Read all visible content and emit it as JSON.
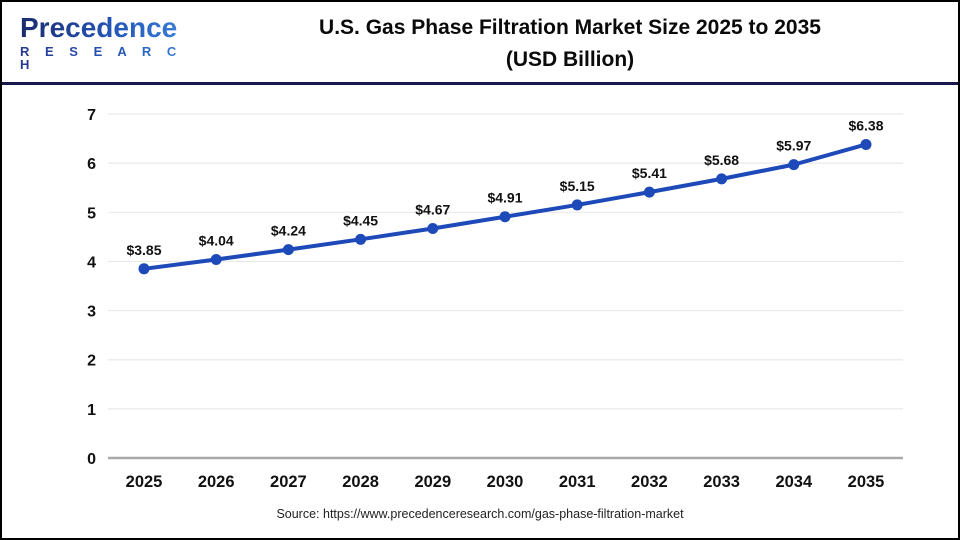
{
  "header": {
    "logo_name": "Precedence",
    "logo_sub": "R E S E A R C H",
    "title_line1": "U.S. Gas Phase Filtration Market Size 2025 to 2035",
    "title_line2": "(USD Billion)"
  },
  "chart_data": {
    "type": "line",
    "title": "U.S. Gas Phase Filtration Market Size 2025 to 2035 (USD Billion)",
    "x": [
      2025,
      2026,
      2027,
      2028,
      2029,
      2030,
      2031,
      2032,
      2033,
      2034,
      2035
    ],
    "values": [
      3.85,
      4.04,
      4.24,
      4.45,
      4.67,
      4.91,
      5.15,
      5.41,
      5.68,
      5.97,
      6.38
    ],
    "point_labels": [
      "$3.85",
      "$4.04",
      "$4.24",
      "$4.45",
      "$4.67",
      "$4.91",
      "$5.15",
      "$5.41",
      "$5.68",
      "$5.97",
      "$6.38"
    ],
    "xlabel": "",
    "ylabel": "",
    "ylim": [
      0,
      7
    ],
    "yticks": [
      0,
      1,
      2,
      3,
      4,
      5,
      6,
      7
    ],
    "grid": true,
    "legend": "none",
    "line_color": "#1e49b8",
    "marker_color": "#1e49b8",
    "grid_color": "#e9e9e9",
    "axis_color": "#a9a9a9",
    "tick_label_color": "#111111",
    "data_label_color": "#111111"
  },
  "footer": {
    "source": "Source: https://www.precedenceresearch.com/gas-phase-filtration-market"
  }
}
